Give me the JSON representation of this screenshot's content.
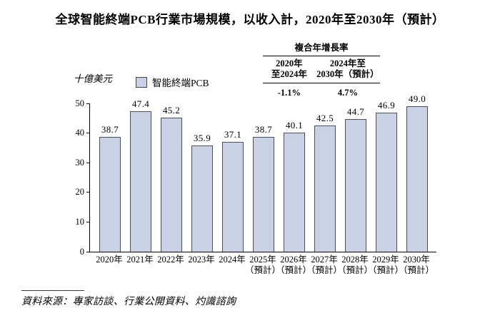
{
  "page": {
    "title": "全球智能終端PCB行業市場規模，以收入計，2020年至2030年（預計）",
    "source": "資料來源：專家訪談、行業公開資料、灼識諮詢"
  },
  "cagr_table": {
    "title": "複合年增長率",
    "columns": [
      {
        "header_line1": "2020年",
        "header_line2": "至2024年",
        "value": "-1.1%"
      },
      {
        "header_line1": "2024年至",
        "header_line2": "2030年（預計）",
        "value": "4.7%"
      }
    ]
  },
  "y_axis": {
    "unit": "十億美元"
  },
  "legend": {
    "label": "智能終端PCB"
  },
  "chart_data": {
    "type": "bar",
    "title": "全球智能終端PCB行業市場規模，以收入計，2020年至2030年（預計）",
    "ylabel": "十億美元",
    "xlabel": "",
    "ylim": [
      0,
      50
    ],
    "yticks": [
      0,
      10,
      20,
      30,
      40,
      50
    ],
    "grid": false,
    "legend_entries": [
      "智能終端PCB"
    ],
    "legend_position": "top-left",
    "categories": [
      [
        "2020年"
      ],
      [
        "2021年"
      ],
      [
        "2022年"
      ],
      [
        "2023年"
      ],
      [
        "2024年"
      ],
      [
        "2025年",
        "（預計）"
      ],
      [
        "2026年",
        "（預計）"
      ],
      [
        "2027年",
        "（預計）"
      ],
      [
        "2028年",
        "（預計）"
      ],
      [
        "2029年",
        "（預計）"
      ],
      [
        "2030年",
        "（預計）"
      ]
    ],
    "values": [
      38.7,
      47.4,
      45.2,
      35.9,
      37.1,
      38.7,
      40.1,
      42.5,
      44.7,
      46.9,
      49.0
    ],
    "value_labels": [
      "38.7",
      "47.4",
      "45.2",
      "35.9",
      "37.1",
      "38.7",
      "40.1",
      "42.5",
      "44.7",
      "46.9",
      "49.0"
    ],
    "bar_color": "#c8d2e4",
    "bar_border_color": "#4b4f58",
    "cagr_2020_2024": "-1.1%",
    "cagr_2024_2030": "4.7%"
  }
}
